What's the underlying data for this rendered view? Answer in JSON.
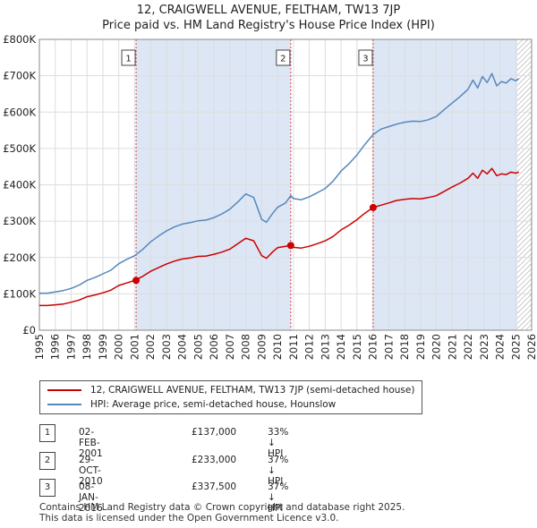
{
  "title_line1": "12, CRAIGWELL AVENUE, FELTHAM, TW13 7JP",
  "title_line2": "Price paid vs. HM Land Registry's House Price Index (HPI)",
  "colors": {
    "red": "#cc0000",
    "blue": "#5588bb",
    "shade": "#dde6f5",
    "grid": "#dddddd"
  },
  "chart_data": {
    "type": "line",
    "xlim": [
      1995,
      2026
    ],
    "ylim": [
      0,
      800000
    ],
    "x_ticks": [
      "1995",
      "1996",
      "1997",
      "1998",
      "1999",
      "2000",
      "2001",
      "2002",
      "2003",
      "2004",
      "2005",
      "2006",
      "2007",
      "2008",
      "2009",
      "2010",
      "2011",
      "2012",
      "2013",
      "2014",
      "2015",
      "2016",
      "2017",
      "2018",
      "2019",
      "2020",
      "2021",
      "2022",
      "2023",
      "2024",
      "2025",
      "2026"
    ],
    "y_ticks": [
      {
        "value": 0,
        "label": "£0"
      },
      {
        "value": 100000,
        "label": "£100K"
      },
      {
        "value": 200000,
        "label": "£200K"
      },
      {
        "value": 300000,
        "label": "£300K"
      },
      {
        "value": 400000,
        "label": "£400K"
      },
      {
        "value": 500000,
        "label": "£500K"
      },
      {
        "value": 600000,
        "label": "£600K"
      },
      {
        "value": 700000,
        "label": "£700K"
      },
      {
        "value": 800000,
        "label": "£800K"
      }
    ],
    "series": [
      {
        "name": "12, CRAIGWELL AVENUE, FELTHAM, TW13 7JP (semi-detached house)",
        "color": "#cc0000",
        "x": [
          1995.0,
          1995.5,
          1996.0,
          1996.5,
          1997.0,
          1997.5,
          1998.0,
          1998.5,
          1999.0,
          1999.5,
          2000.0,
          2000.5,
          2001.0,
          2001.5,
          2002.0,
          2002.5,
          2003.0,
          2003.5,
          2004.0,
          2004.5,
          2005.0,
          2005.5,
          2006.0,
          2006.5,
          2007.0,
          2007.5,
          2008.0,
          2008.5,
          2009.0,
          2009.3,
          2009.7,
          2010.0,
          2010.5,
          2010.83,
          2011.0,
          2011.5,
          2012.0,
          2012.5,
          2013.0,
          2013.5,
          2014.0,
          2014.5,
          2015.0,
          2015.5,
          2016.02,
          2016.5,
          2017.0,
          2017.5,
          2018.0,
          2018.5,
          2019.0,
          2019.5,
          2020.0,
          2020.5,
          2021.0,
          2021.5,
          2022.0,
          2022.3,
          2022.6,
          2022.9,
          2023.2,
          2023.5,
          2023.8,
          2024.1,
          2024.4,
          2024.7,
          2025.0,
          2025.2
        ],
        "y": [
          68000,
          68000,
          70000,
          72000,
          77000,
          83000,
          92000,
          97000,
          103000,
          110000,
          123000,
          130000,
          137000,
          148000,
          162000,
          172000,
          182000,
          190000,
          196000,
          199000,
          203000,
          204000,
          209000,
          215000,
          223000,
          238000,
          253000,
          246000,
          205000,
          198000,
          216000,
          227000,
          231000,
          233000,
          228000,
          226000,
          231000,
          238000,
          246000,
          258000,
          276000,
          289000,
          304000,
          322000,
          337500,
          344000,
          350000,
          357000,
          360000,
          362000,
          361000,
          365000,
          370000,
          382000,
          394000,
          405000,
          418000,
          432000,
          418000,
          440000,
          430000,
          445000,
          425000,
          430000,
          428000,
          435000,
          432000,
          435000
        ]
      },
      {
        "name": "HPI: Average price, semi-detached house, Hounslow",
        "color": "#5588bb",
        "x": [
          1995.0,
          1995.5,
          1996.0,
          1996.5,
          1997.0,
          1997.5,
          1998.0,
          1998.5,
          1999.0,
          1999.5,
          2000.0,
          2000.5,
          2001.0,
          2001.5,
          2002.0,
          2002.5,
          2003.0,
          2003.5,
          2004.0,
          2004.5,
          2005.0,
          2005.5,
          2006.0,
          2006.5,
          2007.0,
          2007.5,
          2008.0,
          2008.5,
          2009.0,
          2009.3,
          2009.7,
          2010.0,
          2010.5,
          2010.83,
          2011.0,
          2011.5,
          2012.0,
          2012.5,
          2013.0,
          2013.5,
          2014.0,
          2014.5,
          2015.0,
          2015.5,
          2016.02,
          2016.5,
          2017.0,
          2017.5,
          2018.0,
          2018.5,
          2019.0,
          2019.5,
          2020.0,
          2020.5,
          2021.0,
          2021.5,
          2022.0,
          2022.3,
          2022.6,
          2022.9,
          2023.2,
          2023.5,
          2023.8,
          2024.1,
          2024.4,
          2024.7,
          2025.0,
          2025.2
        ],
        "y": [
          102000,
          102000,
          105000,
          109000,
          115000,
          124000,
          137000,
          145000,
          155000,
          165000,
          183000,
          195000,
          205000,
          222000,
          243000,
          259000,
          273000,
          284000,
          292000,
          296000,
          301000,
          303000,
          310000,
          320000,
          333000,
          353000,
          375000,
          365000,
          305000,
          297000,
          322000,
          338000,
          350000,
          370000,
          362000,
          359000,
          367000,
          378000,
          390000,
          410000,
          438000,
          458000,
          482000,
          511000,
          538000,
          553000,
          560000,
          567000,
          572000,
          575000,
          574000,
          579000,
          588000,
          607000,
          625000,
          643000,
          663000,
          688000,
          666000,
          698000,
          681000,
          706000,
          672000,
          684000,
          680000,
          692000,
          686000,
          692000
        ]
      }
    ],
    "transactions": [
      {
        "label": "1",
        "x": 2001.09,
        "y": 137000,
        "date": "02-FEB-2001",
        "price": "£137,000",
        "hpi": "33% ↓ HPI"
      },
      {
        "label": "2",
        "x": 2010.83,
        "y": 233000,
        "date": "29-OCT-2010",
        "price": "£233,000",
        "hpi": "37% ↓ HPI"
      },
      {
        "label": "3",
        "x": 2016.02,
        "y": 337500,
        "date": "08-JAN-2016",
        "price": "£337,500",
        "hpi": "37% ↓ HPI"
      }
    ],
    "shaded_ranges": [
      [
        2001.09,
        2010.83
      ],
      [
        2016.02,
        2025.1
      ]
    ],
    "forecast_start": 2025.1
  },
  "legend": {
    "red_label": "12, CRAIGWELL AVENUE, FELTHAM, TW13 7JP (semi-detached house)",
    "blue_label": "HPI: Average price, semi-detached house, Hounslow"
  },
  "footer": {
    "line1": "Contains HM Land Registry data © Crown copyright and database right 2025.",
    "line2": "This data is licensed under the Open Government Licence v3.0."
  }
}
